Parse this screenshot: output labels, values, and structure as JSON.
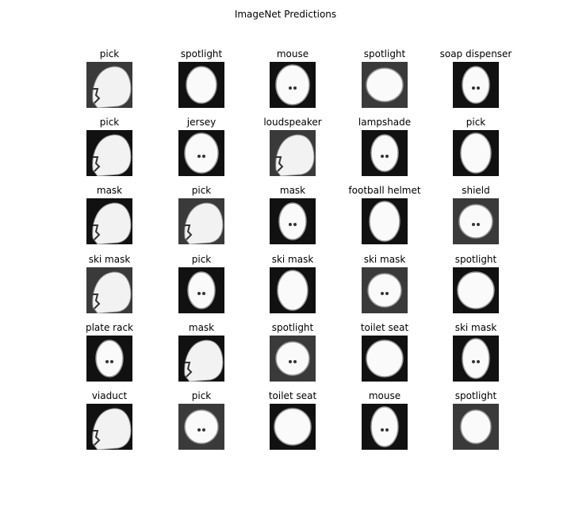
{
  "figure": {
    "title": "ImageNet Predictions"
  },
  "grid": {
    "rows": [
      [
        "pick",
        "spotlight",
        "mouse",
        "spotlight",
        "soap dispenser"
      ],
      [
        "pick",
        "jersey",
        "loudspeaker",
        "lampshade",
        "pick"
      ],
      [
        "mask",
        "pick",
        "mask",
        "football helmet",
        "shield"
      ],
      [
        "ski mask",
        "pick",
        "ski mask",
        "ski mask",
        "spotlight"
      ],
      [
        "plate rack",
        "mask",
        "spotlight",
        "toilet seat",
        "ski mask"
      ],
      [
        "viaduct",
        "pick",
        "toilet seat",
        "mouse",
        "spotlight"
      ]
    ]
  }
}
